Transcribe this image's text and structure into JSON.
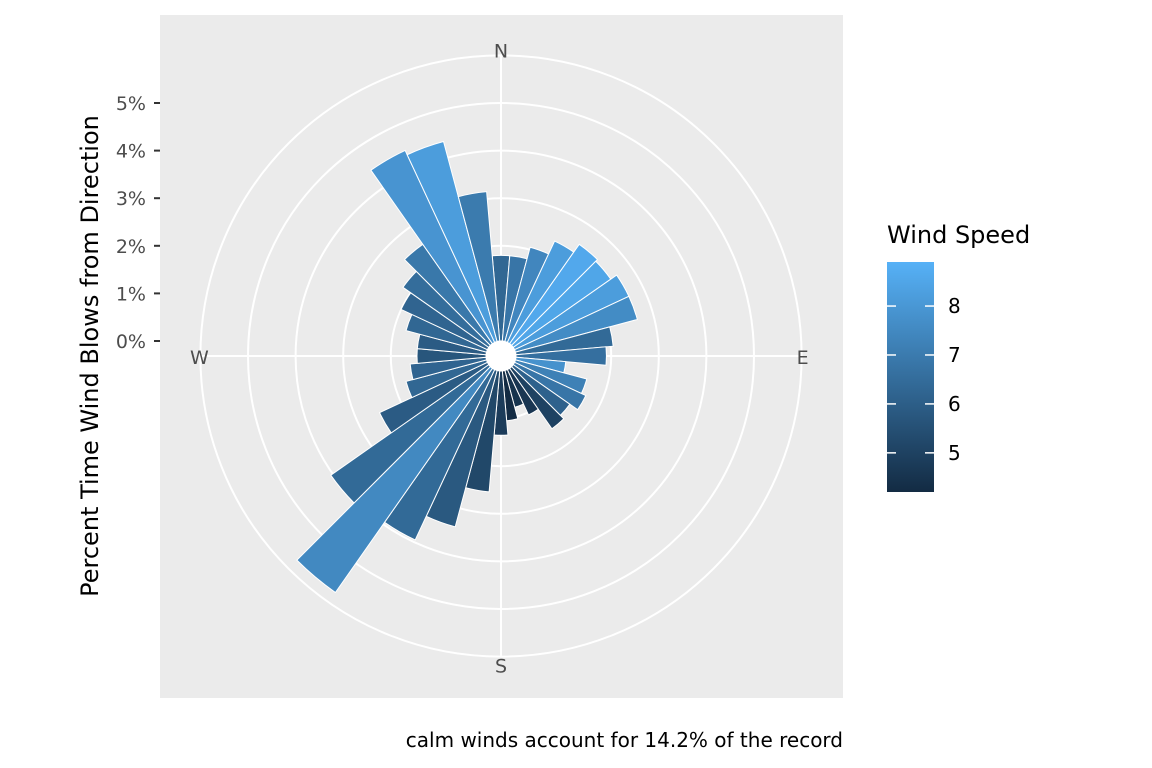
{
  "chart_data": {
    "type": "bar",
    "subtype": "wind-rose (polar bar)",
    "ylabel": "Percent Time Wind Blows from Direction",
    "caption": "calm winds account for 14.2% of the record",
    "compass_labels": [
      "N",
      "E",
      "S",
      "W"
    ],
    "y_ticks": [
      "0%",
      "1%",
      "2%",
      "3%",
      "4%",
      "5%"
    ],
    "ylim": [
      0,
      5.5
    ],
    "grid": true,
    "legend": {
      "title": "Wind Speed",
      "position": "right",
      "ticks": [
        5,
        6,
        7,
        8
      ],
      "range": [
        4.2,
        8.9
      ],
      "color_low": "#132B43",
      "color_high": "#56B1F7"
    },
    "directions": [
      0,
      10,
      20,
      30,
      40,
      50,
      60,
      70,
      80,
      90,
      100,
      110,
      120,
      130,
      140,
      150,
      160,
      170,
      180,
      190,
      200,
      210,
      220,
      230,
      240,
      250,
      260,
      270,
      280,
      290,
      300,
      310,
      320,
      330,
      340,
      350
    ],
    "percent": [
      1.8,
      1.8,
      2.05,
      2.35,
      2.55,
      2.5,
      2.65,
      2.65,
      2.05,
      1.9,
      1.05,
      1.55,
      1.65,
      1.45,
      1.55,
      1.05,
      0.8,
      1.05,
      1.35,
      2.55,
      3.4,
      3.95,
      5.75,
      4.05,
      2.5,
      1.75,
      1.6,
      1.45,
      1.45,
      1.75,
      2.0,
      2.2,
      2.55,
      4.45,
      4.35,
      3.15
    ],
    "wind_speed": [
      6.3,
      6.8,
      7.4,
      8.2,
      8.6,
      8.5,
      8.2,
      7.6,
      6.4,
      6.6,
      7.8,
      7.2,
      6.8,
      6.1,
      5.0,
      4.6,
      4.5,
      4.2,
      4.8,
      5.2,
      5.8,
      6.4,
      7.5,
      6.4,
      5.9,
      6.3,
      6.2,
      5.7,
      5.9,
      6.3,
      6.2,
      6.5,
      6.9,
      7.9,
      8.2,
      7.0
    ]
  }
}
